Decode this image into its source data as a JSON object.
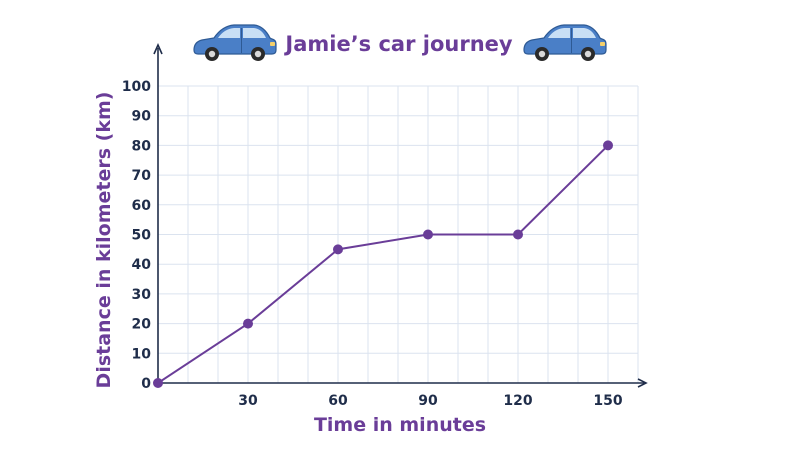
{
  "chart_data": {
    "type": "line",
    "title": "Jamie’s car journey",
    "xlabel": "Time in minutes",
    "ylabel": "Distance in kilometers (km)",
    "x": [
      0,
      30,
      60,
      90,
      120,
      150
    ],
    "series": [
      {
        "values": [
          0,
          20,
          45,
          50,
          50,
          80
        ]
      }
    ],
    "xlim": [
      0,
      160
    ],
    "ylim": [
      0,
      100
    ],
    "xticks": [
      "30",
      "60",
      "90",
      "120",
      "150"
    ],
    "yticks": [
      "0",
      "10",
      "20",
      "30",
      "40",
      "50",
      "60",
      "70",
      "80",
      "90",
      "100"
    ],
    "grid": true,
    "colors": {
      "line": "#6a3d98",
      "marker": "#6a3d98",
      "grid": "#dbe3ef",
      "axis": "#1f2d4a",
      "label": "#6a3d98",
      "car_body": "#4a7fc7",
      "car_window": "#c8dff5"
    },
    "decorations": [
      "car-icon",
      "car-icon"
    ]
  }
}
